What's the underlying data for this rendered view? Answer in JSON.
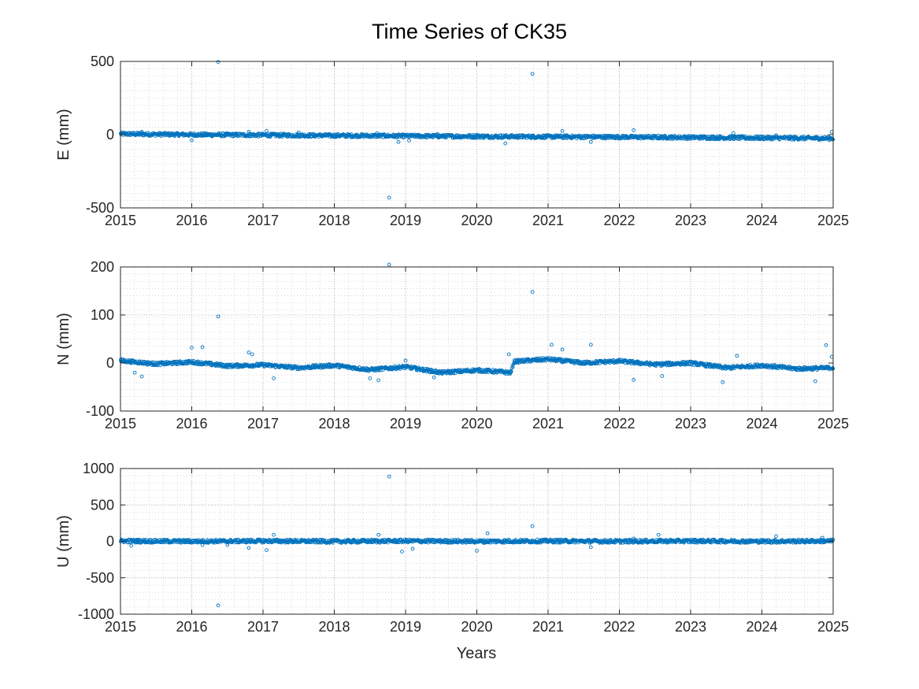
{
  "chart_data": {
    "title": "Time Series of CK35",
    "type": "scatter",
    "marker_color": "#0072BD",
    "grid": true,
    "minor_grid": true,
    "xlabel": "Years",
    "xlim": [
      2015,
      2025
    ],
    "xticks": [
      "2015",
      "2016",
      "2017",
      "2018",
      "2019",
      "2020",
      "2021",
      "2022",
      "2023",
      "2024",
      "2025"
    ],
    "panels": [
      {
        "ylabel": "E (mm)",
        "ylim": [
          -500,
          500
        ],
        "yticks": [
          "500",
          "0",
          "-500"
        ],
        "yticks_values": [
          500,
          0,
          -500
        ],
        "trend": [
          [
            2015.0,
            5
          ],
          [
            2016.0,
            0
          ],
          [
            2017.0,
            -3
          ],
          [
            2018.0,
            -6
          ],
          [
            2019.0,
            -9
          ],
          [
            2020.0,
            -12
          ],
          [
            2021.0,
            -14
          ],
          [
            2022.0,
            -16
          ],
          [
            2023.0,
            -19
          ],
          [
            2024.0,
            -22
          ],
          [
            2025.0,
            -25
          ]
        ],
        "outliers": [
          {
            "x": 2015.3,
            "y": 20
          },
          {
            "x": 2016.0,
            "y": -38
          },
          {
            "x": 2016.37,
            "y": 497
          },
          {
            "x": 2016.8,
            "y": 20
          },
          {
            "x": 2017.05,
            "y": 25
          },
          {
            "x": 2017.5,
            "y": 15
          },
          {
            "x": 2018.6,
            "y": 10
          },
          {
            "x": 2018.77,
            "y": -430
          },
          {
            "x": 2018.9,
            "y": -50
          },
          {
            "x": 2019.05,
            "y": -40
          },
          {
            "x": 2019.45,
            "y": 5
          },
          {
            "x": 2020.0,
            "y": 0
          },
          {
            "x": 2020.4,
            "y": -60
          },
          {
            "x": 2020.78,
            "y": 415
          },
          {
            "x": 2021.2,
            "y": 25
          },
          {
            "x": 2021.6,
            "y": -50
          },
          {
            "x": 2022.2,
            "y": 30
          },
          {
            "x": 2023.6,
            "y": 10
          },
          {
            "x": 2024.2,
            "y": -5
          },
          {
            "x": 2024.98,
            "y": 20
          }
        ]
      },
      {
        "ylabel": "N (mm)",
        "ylim": [
          -100,
          200
        ],
        "yticks": [
          "200",
          "100",
          "0",
          "-100"
        ],
        "yticks_values": [
          200,
          100,
          0,
          -100
        ],
        "trend": [
          [
            2015.0,
            5
          ],
          [
            2015.5,
            -2
          ],
          [
            2016.0,
            2
          ],
          [
            2016.5,
            -6
          ],
          [
            2017.0,
            -4
          ],
          [
            2017.5,
            -10
          ],
          [
            2018.0,
            -5
          ],
          [
            2018.5,
            -14
          ],
          [
            2019.0,
            -8
          ],
          [
            2019.5,
            -20
          ],
          [
            2020.0,
            -15
          ],
          [
            2020.48,
            -20
          ],
          [
            2020.52,
            3
          ],
          [
            2021.0,
            8
          ],
          [
            2021.5,
            0
          ],
          [
            2022.0,
            4
          ],
          [
            2022.5,
            -3
          ],
          [
            2023.0,
            0
          ],
          [
            2023.5,
            -10
          ],
          [
            2024.0,
            -5
          ],
          [
            2024.5,
            -12
          ],
          [
            2025.0,
            -10
          ]
        ],
        "outliers": [
          {
            "x": 2015.2,
            "y": -20
          },
          {
            "x": 2015.3,
            "y": -28
          },
          {
            "x": 2016.0,
            "y": 32
          },
          {
            "x": 2016.15,
            "y": 33
          },
          {
            "x": 2016.37,
            "y": 97
          },
          {
            "x": 2016.8,
            "y": 22
          },
          {
            "x": 2016.85,
            "y": 18
          },
          {
            "x": 2017.15,
            "y": -32
          },
          {
            "x": 2018.5,
            "y": -32
          },
          {
            "x": 2018.62,
            "y": -36
          },
          {
            "x": 2018.77,
            "y": 205
          },
          {
            "x": 2019.0,
            "y": 5
          },
          {
            "x": 2019.4,
            "y": -30
          },
          {
            "x": 2020.45,
            "y": 18
          },
          {
            "x": 2020.78,
            "y": 148
          },
          {
            "x": 2021.05,
            "y": 38
          },
          {
            "x": 2021.2,
            "y": 28
          },
          {
            "x": 2021.6,
            "y": 38
          },
          {
            "x": 2022.2,
            "y": -35
          },
          {
            "x": 2022.6,
            "y": -27
          },
          {
            "x": 2023.45,
            "y": -40
          },
          {
            "x": 2023.65,
            "y": 15
          },
          {
            "x": 2024.75,
            "y": -38
          },
          {
            "x": 2024.9,
            "y": 37
          },
          {
            "x": 2024.98,
            "y": 13
          }
        ]
      },
      {
        "ylabel": "U (mm)",
        "ylim": [
          -1000,
          1000
        ],
        "yticks": [
          "1000",
          "500",
          "0",
          "-500",
          "-1000"
        ],
        "yticks_values": [
          1000,
          500,
          0,
          -500,
          -1000
        ],
        "trend": [
          [
            2015.0,
            5
          ],
          [
            2016.0,
            0
          ],
          [
            2017.0,
            5
          ],
          [
            2018.0,
            0
          ],
          [
            2019.0,
            5
          ],
          [
            2020.0,
            0
          ],
          [
            2021.0,
            5
          ],
          [
            2022.0,
            0
          ],
          [
            2023.0,
            5
          ],
          [
            2024.0,
            0
          ],
          [
            2025.0,
            5
          ]
        ],
        "outliers": [
          {
            "x": 2015.15,
            "y": -60
          },
          {
            "x": 2016.15,
            "y": -50
          },
          {
            "x": 2016.37,
            "y": -880
          },
          {
            "x": 2016.5,
            "y": -50
          },
          {
            "x": 2016.8,
            "y": -90
          },
          {
            "x": 2017.05,
            "y": -120
          },
          {
            "x": 2017.15,
            "y": 90
          },
          {
            "x": 2018.62,
            "y": 90
          },
          {
            "x": 2018.77,
            "y": 890
          },
          {
            "x": 2018.95,
            "y": -140
          },
          {
            "x": 2019.1,
            "y": -100
          },
          {
            "x": 2020.0,
            "y": -130
          },
          {
            "x": 2020.15,
            "y": 110
          },
          {
            "x": 2020.78,
            "y": 210
          },
          {
            "x": 2021.6,
            "y": -80
          },
          {
            "x": 2022.2,
            "y": 40
          },
          {
            "x": 2022.55,
            "y": 90
          },
          {
            "x": 2024.2,
            "y": 70
          },
          {
            "x": 2024.85,
            "y": 50
          }
        ]
      }
    ]
  }
}
